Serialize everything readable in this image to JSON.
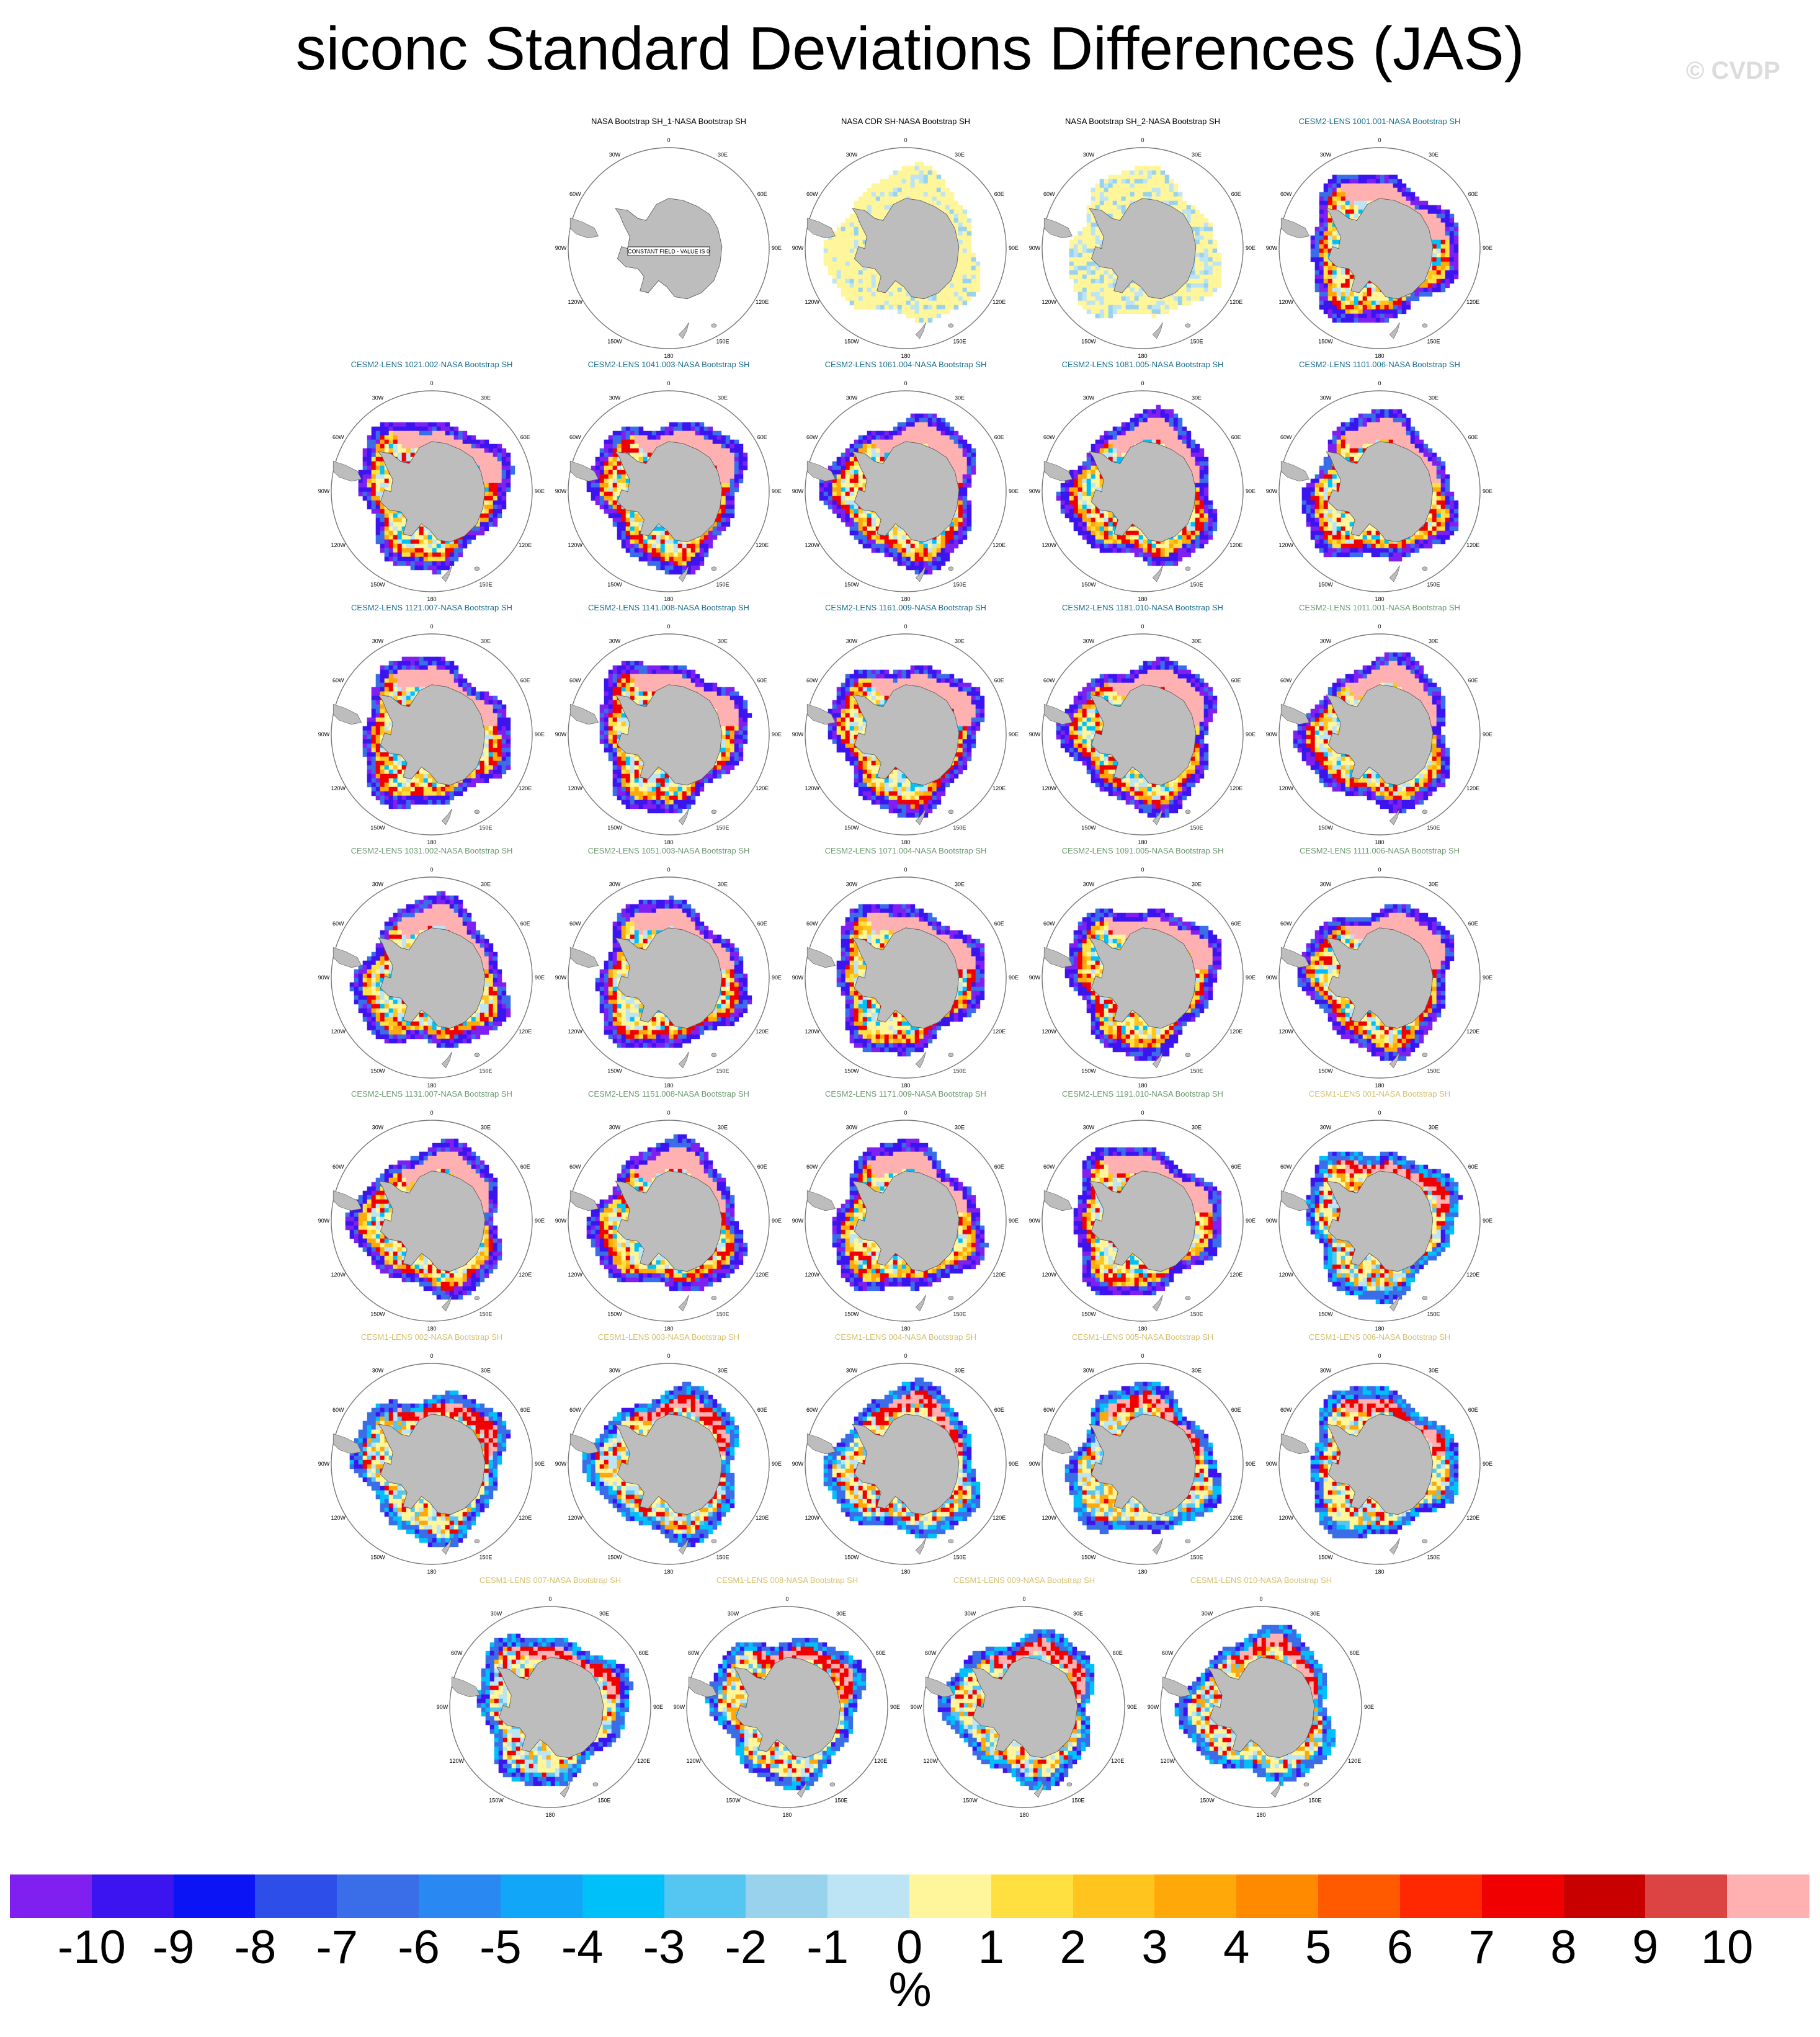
{
  "title": "siconc Standard Deviations Differences (JAS)",
  "watermark": "© CVDP",
  "chart_data": {
    "type": "heatmap",
    "title": "siconc Standard Deviations Differences (JAS)",
    "projection": "south polar stereographic",
    "panels": [
      {
        "title": "NASA Bootstrap SH_1-NASA Bootstrap SH",
        "color": "#000000",
        "pattern": "constant",
        "annotation": "CONSTANT FIELD - VALUE IS 0"
      },
      {
        "title": "NASA CDR SH-NASA Bootstrap SH",
        "color": "#000000",
        "pattern": "obs"
      },
      {
        "title": "NASA Bootstrap SH_2-NASA Bootstrap SH",
        "color": "#000000",
        "pattern": "obs2"
      },
      {
        "title": "CESM2-LENS 1001.001-NASA Bootstrap SH",
        "color": "#1a6f8f",
        "pattern": "cesm2"
      },
      {
        "title": "CESM2-LENS 1021.002-NASA Bootstrap SH",
        "color": "#1a6f8f",
        "pattern": "cesm2"
      },
      {
        "title": "CESM2-LENS 1041.003-NASA Bootstrap SH",
        "color": "#1a6f8f",
        "pattern": "cesm2"
      },
      {
        "title": "CESM2-LENS 1061.004-NASA Bootstrap SH",
        "color": "#1a6f8f",
        "pattern": "cesm2"
      },
      {
        "title": "CESM2-LENS 1081.005-NASA Bootstrap SH",
        "color": "#1a6f8f",
        "pattern": "cesm2"
      },
      {
        "title": "CESM2-LENS 1101.006-NASA Bootstrap SH",
        "color": "#1a6f8f",
        "pattern": "cesm2"
      },
      {
        "title": "CESM2-LENS 1121.007-NASA Bootstrap SH",
        "color": "#1a6f8f",
        "pattern": "cesm2"
      },
      {
        "title": "CESM2-LENS 1141.008-NASA Bootstrap SH",
        "color": "#1a6f8f",
        "pattern": "cesm2"
      },
      {
        "title": "CESM2-LENS 1161.009-NASA Bootstrap SH",
        "color": "#1a6f8f",
        "pattern": "cesm2"
      },
      {
        "title": "CESM2-LENS 1181.010-NASA Bootstrap SH",
        "color": "#1a6f8f",
        "pattern": "cesm2"
      },
      {
        "title": "CESM2-LENS 1011.001-NASA Bootstrap SH",
        "color": "#6a9a6f",
        "pattern": "cesm2"
      },
      {
        "title": "CESM2-LENS 1031.002-NASA Bootstrap SH",
        "color": "#6a9a6f",
        "pattern": "cesm2"
      },
      {
        "title": "CESM2-LENS 1051.003-NASA Bootstrap SH",
        "color": "#6a9a6f",
        "pattern": "cesm2"
      },
      {
        "title": "CESM2-LENS 1071.004-NASA Bootstrap SH",
        "color": "#6a9a6f",
        "pattern": "cesm2"
      },
      {
        "title": "CESM2-LENS 1091.005-NASA Bootstrap SH",
        "color": "#6a9a6f",
        "pattern": "cesm2"
      },
      {
        "title": "CESM2-LENS 1111.006-NASA Bootstrap SH",
        "color": "#6a9a6f",
        "pattern": "cesm2"
      },
      {
        "title": "CESM2-LENS 1131.007-NASA Bootstrap SH",
        "color": "#6a9a6f",
        "pattern": "cesm2"
      },
      {
        "title": "CESM2-LENS 1151.008-NASA Bootstrap SH",
        "color": "#6a9a6f",
        "pattern": "cesm2"
      },
      {
        "title": "CESM2-LENS 1171.009-NASA Bootstrap SH",
        "color": "#6a9a6f",
        "pattern": "cesm2"
      },
      {
        "title": "CESM2-LENS 1191.010-NASA Bootstrap SH",
        "color": "#6a9a6f",
        "pattern": "cesm2"
      },
      {
        "title": "CESM1-LENS 001-NASA Bootstrap SH",
        "color": "#d4c070",
        "pattern": "cesm1"
      },
      {
        "title": "CESM1-LENS 002-NASA Bootstrap SH",
        "color": "#d4c070",
        "pattern": "cesm1"
      },
      {
        "title": "CESM1-LENS 003-NASA Bootstrap SH",
        "color": "#d4c070",
        "pattern": "cesm1"
      },
      {
        "title": "CESM1-LENS 004-NASA Bootstrap SH",
        "color": "#d4c070",
        "pattern": "cesm1"
      },
      {
        "title": "CESM1-LENS 005-NASA Bootstrap SH",
        "color": "#d4c070",
        "pattern": "cesm1"
      },
      {
        "title": "CESM1-LENS 006-NASA Bootstrap SH",
        "color": "#d4c070",
        "pattern": "cesm1"
      },
      {
        "title": "CESM1-LENS 007-NASA Bootstrap SH",
        "color": "#d4c070",
        "pattern": "cesm1"
      },
      {
        "title": "CESM1-LENS 008-NASA Bootstrap SH",
        "color": "#d4c070",
        "pattern": "cesm1"
      },
      {
        "title": "CESM1-LENS 009-NASA Bootstrap SH",
        "color": "#d4c070",
        "pattern": "cesm1"
      },
      {
        "title": "CESM1-LENS 010-NASA Bootstrap SH",
        "color": "#d4c070",
        "pattern": "cesm1"
      }
    ],
    "longitude_labels": [
      "0",
      "30E",
      "60E",
      "90E",
      "120E",
      "150E",
      "180",
      "150W",
      "120W",
      "90W",
      "60W",
      "30W"
    ],
    "colorbar": {
      "unit": "%",
      "ticks": [
        "-10",
        "-9",
        "-8",
        "-7",
        "-6",
        "-5",
        "-4",
        "-3",
        "-2",
        "-1",
        "0",
        "1",
        "2",
        "3",
        "4",
        "5",
        "6",
        "7",
        "8",
        "9",
        "10"
      ],
      "colors": [
        "#8020f0",
        "#3c14f0",
        "#0a14f5",
        "#2d4ee8",
        "#3a6ee8",
        "#2a88f2",
        "#12a6f8",
        "#00c0fa",
        "#55c6f2",
        "#98d2ec",
        "#bde4f4",
        "#fff59a",
        "#ffe040",
        "#ffc51e",
        "#ffa80a",
        "#ff8a00",
        "#ff5a00",
        "#ff2800",
        "#f00000",
        "#c80000",
        "#dc4444",
        "#ffb0b0"
      ]
    }
  }
}
